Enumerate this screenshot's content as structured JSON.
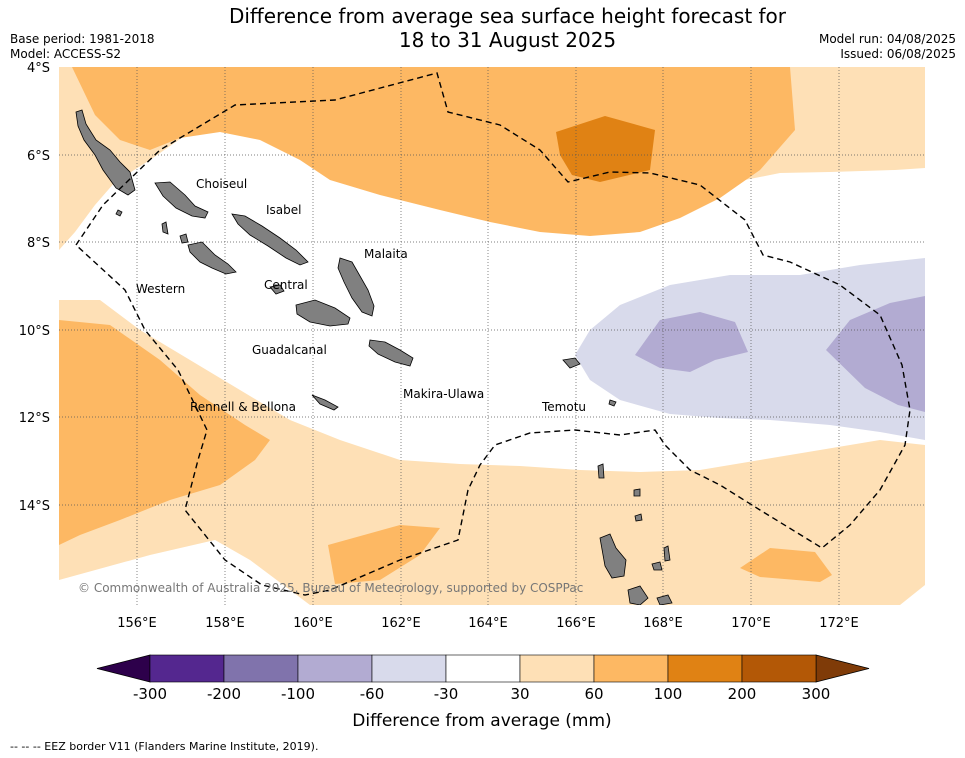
{
  "title_line1": "Difference from average sea surface height forecast for",
  "title_line2": "18 to 31 August 2025",
  "base_period": "Base period: 1981-2018",
  "model": "Model: ACCESS-S2",
  "model_run": "Model run: 04/08/2025",
  "issued": "Issued: 06/08/2025",
  "lat_labels": [
    "4°S",
    "6°S",
    "8°S",
    "10°S",
    "12°S",
    "14°S"
  ],
  "lon_labels": [
    "156°E",
    "158°E",
    "160°E",
    "162°E",
    "164°E",
    "166°E",
    "168°E",
    "170°E",
    "172°E"
  ],
  "provinces": [
    "Choiseul",
    "Isabel",
    "Malaita",
    "Western",
    "Central",
    "Guadalcanal",
    "Makira-Ulawa",
    "Temotu",
    "Rennell & Bellona"
  ],
  "copyright": "© Commonwealth of Australia 2025, Bureau of Meteorology, supported by COSPPac",
  "colorbar": {
    "label": "Difference from average (mm)",
    "ticks": [
      "-300",
      "-200",
      "-100",
      "-60",
      "-30",
      "30",
      "60",
      "100",
      "200",
      "300"
    ],
    "colors": [
      "#54278f",
      "#8073ac",
      "#b2abd2",
      "#d8daeb",
      "#ffffff",
      "#fee0b6",
      "#fdb863",
      "#e08214",
      "#b35806"
    ],
    "extend_low": "#2d004b",
    "extend_high": "#7f3b08"
  },
  "footnote": "--  --  -- EEZ border V11 (Flanders Marine Institute, 2019)."
}
